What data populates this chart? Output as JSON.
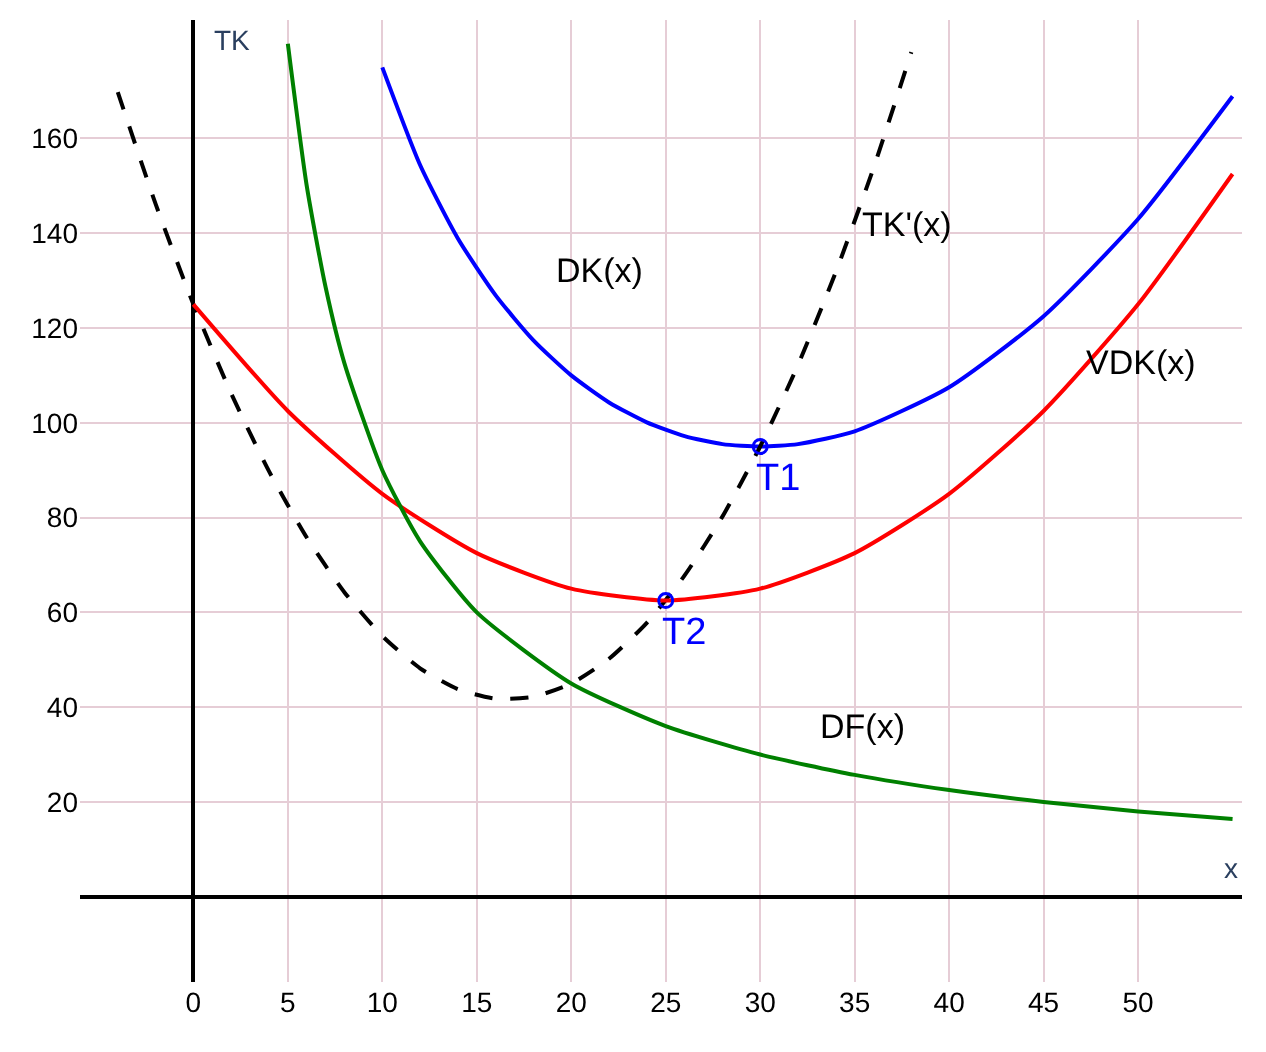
{
  "chart_data": {
    "type": "line",
    "xlabel": "x",
    "ylabel": "TK",
    "xlim": [
      -6,
      55.5
    ],
    "ylim": [
      -18,
      185
    ],
    "xticks": [
      0,
      5,
      10,
      15,
      20,
      25,
      30,
      35,
      40,
      45,
      50
    ],
    "yticks": [
      20,
      40,
      60,
      80,
      100,
      120,
      140,
      160
    ],
    "grid": true,
    "legend": false,
    "series": [
      {
        "name": "DK(x)",
        "color": "#0000ff",
        "line_style": "solid",
        "marker": "none",
        "x": [
          10,
          12,
          14,
          16,
          18,
          20,
          22,
          24,
          26,
          28,
          30,
          32,
          35,
          40,
          45,
          50,
          55
        ],
        "values": [
          175,
          154.4,
          138.9,
          126.9,
          117.4,
          110,
          104.3,
          100.1,
          97.2,
          95.5,
          95,
          95.5,
          98.2,
          107.5,
          122.5,
          143,
          168.9
        ]
      },
      {
        "name": "TK'(x)",
        "color": "#000000",
        "line_style": "dashed",
        "marker": "none",
        "x": [
          -4,
          -2,
          0,
          2,
          4,
          6,
          8,
          10,
          12,
          14,
          16,
          18,
          20,
          22,
          24,
          26,
          28,
          30,
          32,
          34,
          36,
          38
        ],
        "values": [
          169.8,
          146.2,
          125,
          106.2,
          89.8,
          75.8,
          64.2,
          55,
          48.2,
          43.8,
          41.8,
          42.2,
          45,
          50.2,
          57.8,
          67.8,
          80.2,
          95,
          112.2,
          131.8,
          153.8,
          178.2
        ]
      },
      {
        "name": "VDK(x)",
        "color": "#ff0000",
        "line_style": "solid",
        "marker": "none",
        "x": [
          0,
          5,
          10,
          15,
          20,
          25,
          30,
          35,
          40,
          45,
          50,
          55
        ],
        "values": [
          125,
          102.5,
          85,
          72.5,
          65,
          62.5,
          65,
          72.5,
          85,
          102.5,
          125,
          152.5
        ]
      },
      {
        "name": "DF(x)",
        "color": "#008000",
        "line_style": "solid",
        "marker": "none",
        "x": [
          5,
          6,
          7,
          8,
          10,
          12,
          15,
          20,
          25,
          30,
          35,
          40,
          45,
          50,
          55
        ],
        "values": [
          180,
          150,
          128.6,
          112.5,
          90,
          75,
          60,
          45,
          36,
          30,
          25.7,
          22.5,
          20,
          18,
          16.4
        ]
      },
      {
        "type": "scatter",
        "color": "#0000ff",
        "marker": "circle",
        "x": [
          30,
          25
        ],
        "values": [
          95,
          62.5
        ]
      }
    ],
    "annotations": [
      {
        "text": "T1",
        "x": 30,
        "y": 95
      },
      {
        "text": "T2",
        "x": 25,
        "y": 62.5
      }
    ]
  }
}
